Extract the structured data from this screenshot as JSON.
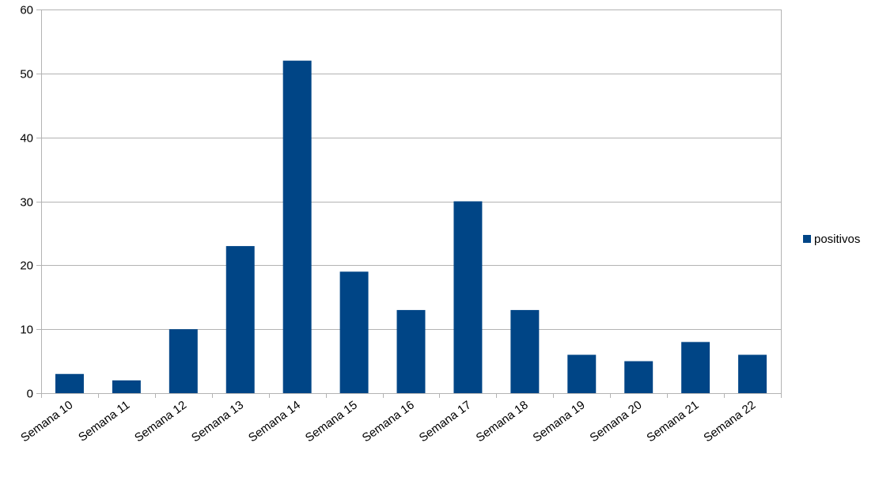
{
  "chart_data": {
    "type": "bar",
    "categories": [
      "Semana 10",
      "Semana 11",
      "Semana 12",
      "Semana 13",
      "Semana 14",
      "Semana 15",
      "Semana 16",
      "Semana 17",
      "Semana 18",
      "Semana 19",
      "Semana 20",
      "Semana 21",
      "Semana 22"
    ],
    "series": [
      {
        "name": "positivos",
        "values": [
          3,
          2,
          10,
          23,
          52,
          19,
          13,
          30,
          13,
          6,
          5,
          8,
          6
        ],
        "color": "#004586"
      }
    ],
    "yticks": [
      "0",
      "10",
      "20",
      "30",
      "40",
      "50",
      "60"
    ],
    "ylim": [
      0,
      60
    ],
    "grid": true,
    "legend_position": "right",
    "title": "",
    "xlabel": "",
    "ylabel": ""
  }
}
